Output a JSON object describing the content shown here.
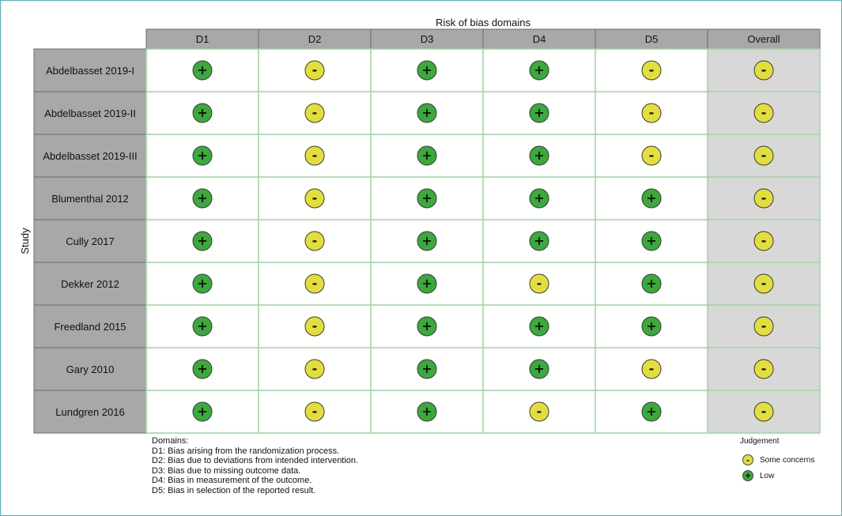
{
  "chart_data": {
    "type": "table",
    "title": "Risk of bias domains",
    "ylabel": "Study",
    "columns": [
      "D1",
      "D2",
      "D3",
      "D4",
      "D5",
      "Overall"
    ],
    "rows": [
      {
        "study": "Abdelbasset 2019-I",
        "values": [
          "low",
          "some",
          "low",
          "low",
          "some",
          "some"
        ]
      },
      {
        "study": "Abdelbasset 2019-II",
        "values": [
          "low",
          "some",
          "low",
          "low",
          "some",
          "some"
        ]
      },
      {
        "study": "Abdelbasset 2019-III",
        "values": [
          "low",
          "some",
          "low",
          "low",
          "some",
          "some"
        ]
      },
      {
        "study": "Blumenthal 2012",
        "values": [
          "low",
          "some",
          "low",
          "low",
          "low",
          "some"
        ]
      },
      {
        "study": "Cully 2017",
        "values": [
          "low",
          "some",
          "low",
          "low",
          "low",
          "some"
        ]
      },
      {
        "study": "Dekker 2012",
        "values": [
          "low",
          "some",
          "low",
          "some",
          "low",
          "some"
        ]
      },
      {
        "study": "Freedland 2015",
        "values": [
          "low",
          "some",
          "low",
          "low",
          "low",
          "some"
        ]
      },
      {
        "study": "Gary 2010",
        "values": [
          "low",
          "some",
          "low",
          "low",
          "some",
          "some"
        ]
      },
      {
        "study": "Lundgren 2016",
        "values": [
          "low",
          "some",
          "low",
          "some",
          "low",
          "some"
        ]
      }
    ],
    "judgements": {
      "low": {
        "symbol": "+",
        "label": "Low",
        "color": "#3aaa3a"
      },
      "some": {
        "symbol": "-",
        "label": "Some concerns",
        "color": "#e3df3a"
      }
    },
    "domains_title": "Domains:",
    "domains": [
      "D1: Bias arising from the randomization process.",
      "D2: Bias due to deviations from intended intervention.",
      "D3: Bias due to missing outcome data.",
      "D4: Bias in measurement of the outcome.",
      "D5: Bias in selection of the reported result."
    ],
    "legend_title": "Judgement",
    "legend_order": [
      "some",
      "low"
    ],
    "colors": {
      "header_bg": "#a8a8a8",
      "study_bg": "#a8a8a8",
      "overall_bg": "#d8d8d8",
      "grid_line": "#9fd49f",
      "frame": "#4fb0bd"
    }
  }
}
